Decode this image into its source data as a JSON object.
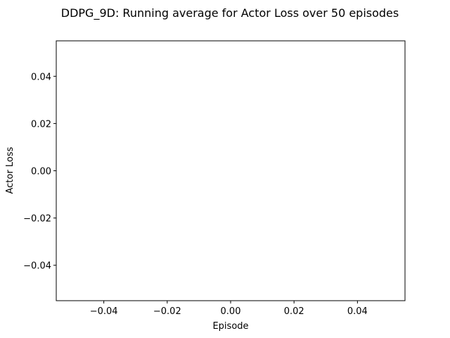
{
  "chart_data": {
    "type": "line",
    "title": "DDPG_9D: Running average for Actor Loss over 50 episodes",
    "xlabel": "Episode",
    "ylabel": "Actor Loss",
    "xlim": [
      -0.055,
      0.055
    ],
    "ylim": [
      -0.055,
      0.055
    ],
    "x_ticks": [
      -0.04,
      -0.02,
      0.0,
      0.02,
      0.04
    ],
    "x_tick_labels": [
      "−0.04",
      "−0.02",
      "0.00",
      "0.02",
      "0.04"
    ],
    "y_ticks": [
      -0.04,
      -0.02,
      0.0,
      0.02,
      0.04
    ],
    "y_tick_labels": [
      "−0.04",
      "−0.02",
      "0.00",
      "0.02",
      "0.04"
    ],
    "grid": false,
    "series": [
      {
        "x": [],
        "y": []
      }
    ]
  }
}
